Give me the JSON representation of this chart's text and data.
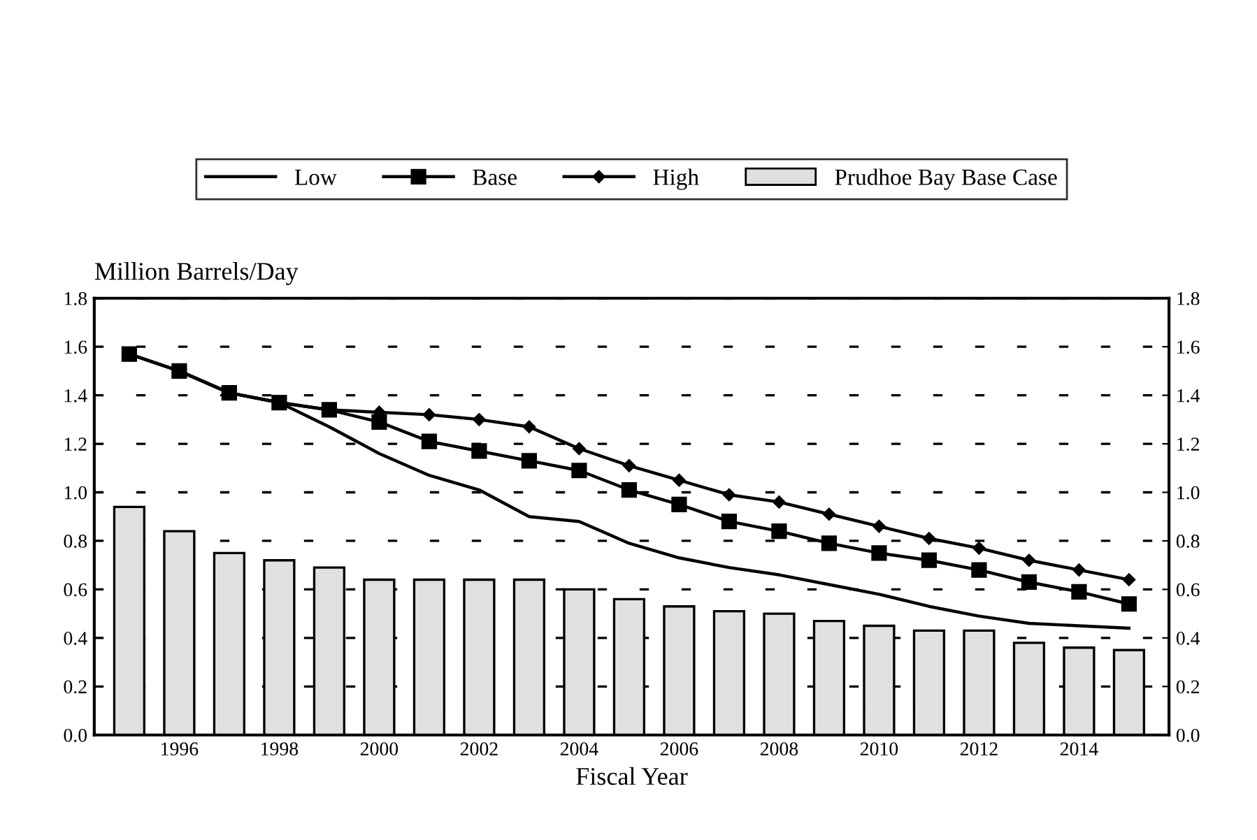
{
  "chart_data": {
    "type": "line",
    "ylabel": "Million Barrels/Day",
    "xlabel": "Fiscal Year",
    "x": [
      1995,
      1996,
      1997,
      1998,
      1999,
      2000,
      2001,
      2002,
      2003,
      2004,
      2005,
      2006,
      2007,
      2008,
      2009,
      2010,
      2011,
      2012,
      2013,
      2014,
      2015
    ],
    "series": [
      {
        "name": "Low",
        "color": "#000000",
        "marker": "none",
        "values": [
          1.57,
          1.5,
          1.41,
          1.37,
          1.27,
          1.16,
          1.07,
          1.01,
          0.9,
          0.88,
          0.79,
          0.73,
          0.69,
          0.66,
          0.62,
          0.58,
          0.53,
          0.49,
          0.46,
          0.45,
          0.44
        ]
      },
      {
        "name": "Base",
        "color": "#000000",
        "marker": "square",
        "values": [
          1.57,
          1.5,
          1.41,
          1.37,
          1.34,
          1.29,
          1.21,
          1.17,
          1.13,
          1.09,
          1.01,
          0.95,
          0.88,
          0.84,
          0.79,
          0.75,
          0.72,
          0.68,
          0.63,
          0.59,
          0.54
        ]
      },
      {
        "name": "High",
        "color": "#000000",
        "marker": "diamond",
        "values": [
          1.57,
          1.5,
          1.41,
          1.37,
          1.34,
          1.33,
          1.32,
          1.3,
          1.27,
          1.18,
          1.11,
          1.05,
          0.99,
          0.96,
          0.91,
          0.86,
          0.81,
          0.77,
          0.72,
          0.68,
          0.64
        ]
      },
      {
        "name": "Prudhoe Bay Base Case",
        "type": "bar",
        "color": "#e0e0e0",
        "values": [
          0.94,
          0.84,
          0.75,
          0.72,
          0.69,
          0.64,
          0.64,
          0.64,
          0.64,
          0.6,
          0.56,
          0.53,
          0.51,
          0.5,
          0.47,
          0.45,
          0.43,
          0.43,
          0.38,
          0.36,
          0.35
        ]
      }
    ],
    "xlim": [
      1994.3,
      2015.8
    ],
    "xticks": [
      1996,
      1998,
      2000,
      2002,
      2004,
      2006,
      2008,
      2010,
      2012,
      2014
    ],
    "ylim": [
      0,
      1.8
    ],
    "yticks": [
      {
        "value": 0,
        "label": "0.0"
      },
      {
        "value": 0.2,
        "label": "0.2"
      },
      {
        "value": 0.4,
        "label": "0.4"
      },
      {
        "value": 0.6,
        "label": "0.6"
      },
      {
        "value": 0.8,
        "label": "0.8"
      },
      {
        "value": 1.0,
        "label": "1.0"
      },
      {
        "value": 1.2,
        "label": "1.2"
      },
      {
        "value": 1.4,
        "label": "1.4"
      },
      {
        "value": 1.6,
        "label": "1.6"
      },
      {
        "value": 1.8,
        "label": "1.8"
      }
    ],
    "y2lim": [
      0,
      1.8
    ],
    "y2ticks": [
      {
        "value": 0,
        "label": "0.0"
      },
      {
        "value": 0.2,
        "label": "0.2"
      },
      {
        "value": 0.4,
        "label": "0.4"
      },
      {
        "value": 0.6,
        "label": "0.6"
      },
      {
        "value": 0.8,
        "label": "0.8"
      },
      {
        "value": 1.0,
        "label": "1.0"
      },
      {
        "value": 1.2,
        "label": "1.2"
      },
      {
        "value": 1.4,
        "label": "1.4"
      },
      {
        "value": 1.6,
        "label": "1.6"
      },
      {
        "value": 1.8,
        "label": "1.8"
      }
    ],
    "grid": "y",
    "legend": "top"
  }
}
